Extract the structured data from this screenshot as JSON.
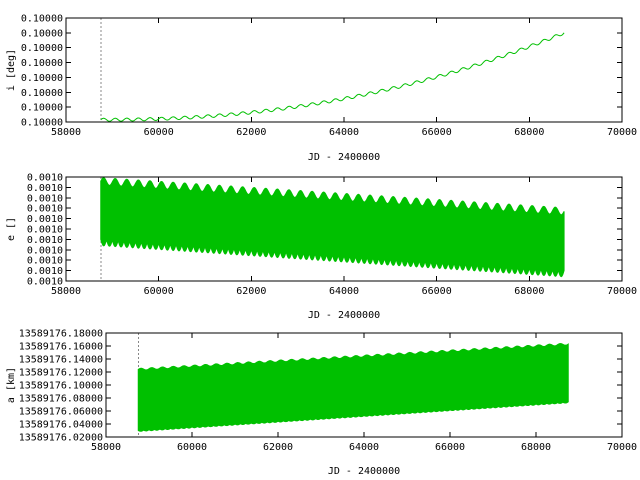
{
  "colors": {
    "series": "#00c000",
    "axis": "#000000",
    "marker": "#888888"
  },
  "chart_data": [
    {
      "type": "line",
      "ylabel": "i [deg]",
      "xlabel": "JD - 2400000",
      "x_ticks": [
        "58000",
        "60000",
        "62000",
        "64000",
        "66000",
        "68000",
        "70000"
      ],
      "y_ticks": [
        "0.10000",
        "0.10000",
        "0.10000",
        "0.10000",
        "0.10000",
        "0.10000",
        "0.10000",
        "0.10000"
      ],
      "xlim": [
        58000,
        70000
      ],
      "ylim": [
        0,
        7
      ],
      "marker_x": 58750,
      "series": [
        {
          "style": "oscillating",
          "x_start": 58750,
          "x_end": 68750,
          "center_start": 0.15,
          "center_end": 6.0,
          "center_power": 2.2,
          "amplitude_start": 0.1,
          "amplitude_end": 0.1,
          "period": 250
        }
      ]
    },
    {
      "type": "line",
      "ylabel": "e []",
      "xlabel": "JD - 2400000",
      "x_ticks": [
        "58000",
        "60000",
        "62000",
        "64000",
        "66000",
        "68000",
        "70000"
      ],
      "y_ticks": [
        "0.0010",
        "0.0010",
        "0.0010",
        "0.0010",
        "0.0010",
        "0.0010",
        "0.0010",
        "0.0010",
        "0.0010",
        "0.0010",
        "0.0010"
      ],
      "xlim": [
        58000,
        70000
      ],
      "ylim": [
        0,
        10
      ],
      "marker_x": 58750,
      "series": [
        {
          "style": "band",
          "x_start": 58750,
          "x_end": 68750,
          "upper_start": 9.6,
          "upper_end": 6.7,
          "lower_start": 4.0,
          "lower_end": 1.0,
          "upper_ripple": 0.35,
          "lower_ripple": 0.6,
          "period": 250
        }
      ]
    },
    {
      "type": "line",
      "ylabel": "a [km]",
      "xlabel": "JD - 2400000",
      "x_ticks": [
        "58000",
        "60000",
        "62000",
        "64000",
        "66000",
        "68000",
        "70000"
      ],
      "y_ticks": [
        "13589176.02000",
        "13589176.04000",
        "13589176.06000",
        "13589176.08000",
        "13589176.10000",
        "13589176.12000",
        "13589176.14000",
        "13589176.16000",
        "13589176.18000"
      ],
      "xlim": [
        58000,
        70000
      ],
      "ylim": [
        13589176.02,
        13589176.18
      ],
      "marker_x": 58750,
      "series": [
        {
          "style": "band",
          "x_start": 58750,
          "x_end": 68750,
          "upper_start": 13589176.124,
          "upper_end": 13589176.163,
          "lower_start": 13589176.03,
          "lower_end": 13589176.074,
          "upper_ripple": 0.0015,
          "lower_ripple": 0.0015,
          "period": 250
        }
      ]
    }
  ]
}
